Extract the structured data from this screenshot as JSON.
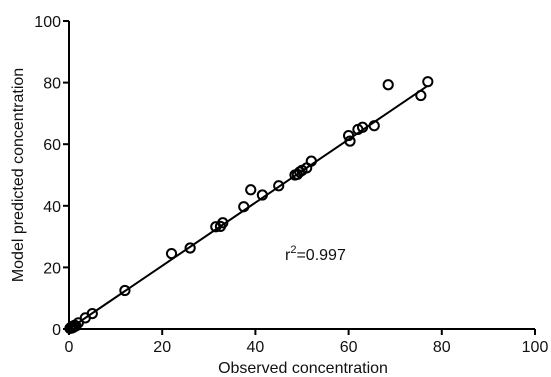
{
  "chart_data": {
    "type": "scatter",
    "title": "",
    "xlabel": "Observed concentration",
    "ylabel": "Model predicted concentration",
    "xlim": [
      0,
      100
    ],
    "ylim": [
      0,
      100
    ],
    "xticks": [
      "0",
      "20",
      "40",
      "60",
      "80",
      "100"
    ],
    "yticks": [
      "0",
      "20",
      "40",
      "60",
      "80",
      "100"
    ],
    "grid": false,
    "annotation": {
      "base": "r",
      "sup": "2",
      "value": "=0.997"
    },
    "fit_line": {
      "x": [
        0,
        77
      ],
      "y": [
        0,
        79
      ]
    },
    "marker_color": "#000000",
    "points": [
      [
        0.2,
        0.2
      ],
      [
        0.4,
        0.5
      ],
      [
        0.6,
        0.3
      ],
      [
        0.8,
        0.9
      ],
      [
        1.0,
        0.6
      ],
      [
        1.2,
        1.2
      ],
      [
        1.5,
        1.0
      ],
      [
        2.0,
        2.0
      ],
      [
        3.5,
        3.6
      ],
      [
        5.0,
        5.0
      ],
      [
        12,
        12.5
      ],
      [
        22,
        24.5
      ],
      [
        26,
        26.3
      ],
      [
        31.5,
        33.2
      ],
      [
        32.5,
        33.3
      ],
      [
        33,
        34.5
      ],
      [
        37.5,
        39.7
      ],
      [
        39,
        45.2
      ],
      [
        41.5,
        43.5
      ],
      [
        45,
        46.5
      ],
      [
        48.5,
        50.0
      ],
      [
        49.0,
        50.2
      ],
      [
        49.5,
        51.0
      ],
      [
        50,
        51.5
      ],
      [
        51,
        52.3
      ],
      [
        52,
        54.5
      ],
      [
        60,
        62.8
      ],
      [
        60.3,
        61.0
      ],
      [
        62,
        64.8
      ],
      [
        63,
        65.5
      ],
      [
        65.5,
        66.0
      ],
      [
        68.5,
        79.3
      ],
      [
        75.5,
        75.8
      ],
      [
        77,
        80.3
      ]
    ]
  }
}
